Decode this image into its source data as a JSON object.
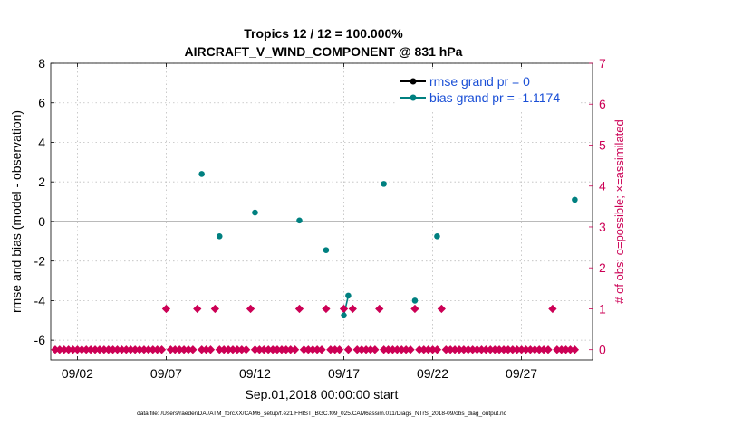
{
  "chart_data": {
    "type": "scatter",
    "title": "Tropics 12 / 12 = 100.000%",
    "subtitle": "AIRCRAFT_V_WIND_COMPONENT @ 831 hPa",
    "xlabel": "Sep.01,2018 00:00:00 start",
    "ylabel": "rmse and bias (model - observation)",
    "y2label": "# of obs: o=possible; ×=assimilated",
    "footnote": "data file: /Users/raeder/DAI/ATM_forcXX/CAM6_setup/f.e21.FHIST_BGC.f09_025.CAM6assim.011/Diags_NTrS_2018-09/obs_diag_output.nc",
    "xlim": [
      0.5,
      31.0
    ],
    "ylim": [
      -7,
      8
    ],
    "y2lim": [
      -0.25,
      7
    ],
    "x_ticks": [
      {
        "day": 2,
        "label": "09/02"
      },
      {
        "day": 7,
        "label": "09/07"
      },
      {
        "day": 12,
        "label": "09/12"
      },
      {
        "day": 17,
        "label": "09/17"
      },
      {
        "day": 22,
        "label": "09/22"
      },
      {
        "day": 27,
        "label": "09/27"
      }
    ],
    "y_ticks": [
      "-6",
      "-4",
      "-2",
      "0",
      "2",
      "4",
      "6",
      "8"
    ],
    "y2_ticks": [
      "0",
      "1",
      "2",
      "3",
      "4",
      "5",
      "6",
      "7"
    ],
    "zero_line": 0,
    "legend": {
      "position": "top-right",
      "entries": [
        "rmse grand pr = 0",
        "bias grand pr = -1.1174"
      ]
    },
    "colors": {
      "rmse": "#000000",
      "bias": "#008080",
      "obs": "#cc0055",
      "ylabel_right": "#cc0055",
      "legend_text": "#1a4fd6",
      "zero_line": "#b0b0b0"
    },
    "bias_points": [
      {
        "day": 9.0,
        "value": 2.4
      },
      {
        "day": 10.0,
        "value": -0.75
      },
      {
        "day": 12.0,
        "value": 0.45
      },
      {
        "day": 14.5,
        "value": 0.05
      },
      {
        "day": 16.0,
        "value": -1.45
      },
      {
        "day": 17.0,
        "value": -4.75
      },
      {
        "day": 17.25,
        "value": -3.75
      },
      {
        "day": 19.25,
        "value": 1.9
      },
      {
        "day": 21.0,
        "value": -4.0
      },
      {
        "day": 22.25,
        "value": -0.75
      },
      {
        "day": 30.0,
        "value": 1.1
      }
    ],
    "bias_line_segments": [
      [
        5,
        6
      ]
    ],
    "obs_bins_start": 0.75,
    "obs_bins_step": 0.25,
    "obs_counts": [
      0,
      0,
      0,
      0,
      0,
      0,
      0,
      0,
      0,
      0,
      0,
      0,
      0,
      0,
      0,
      0,
      0,
      0,
      0,
      0,
      0,
      0,
      0,
      0,
      0,
      1,
      0,
      0,
      0,
      0,
      0,
      0,
      1,
      0,
      0,
      0,
      1,
      0,
      0,
      0,
      0,
      0,
      0,
      0,
      1,
      0,
      0,
      0,
      0,
      0,
      0,
      0,
      0,
      0,
      0,
      1,
      0,
      0,
      0,
      0,
      0,
      1,
      0,
      0,
      0,
      1,
      0,
      1,
      0,
      0,
      0,
      0,
      0,
      1,
      0,
      0,
      0,
      0,
      0,
      0,
      0,
      1,
      0,
      0,
      0,
      0,
      0,
      1,
      0,
      0,
      0,
      0,
      0,
      0,
      0,
      0,
      0,
      0,
      0,
      0,
      0,
      0,
      0,
      0,
      0,
      0,
      0,
      0,
      0,
      0,
      0,
      0,
      1,
      0,
      0,
      0,
      0,
      0
    ]
  }
}
